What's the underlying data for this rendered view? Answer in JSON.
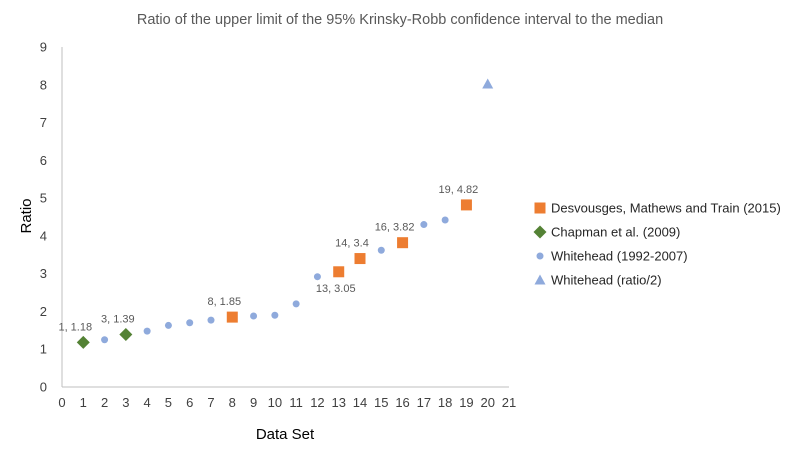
{
  "chart_data": {
    "type": "scatter",
    "title": "Ratio of the upper limit of the 95% Krinsky-Robb confidence interval to the median",
    "xlabel": "Data Set",
    "ylabel": "Ratio",
    "xlim": [
      0,
      21
    ],
    "ylim": [
      0,
      9
    ],
    "x_ticks": [
      0,
      1,
      2,
      3,
      4,
      5,
      6,
      7,
      8,
      9,
      10,
      11,
      12,
      13,
      14,
      15,
      16,
      17,
      18,
      19,
      20,
      21
    ],
    "y_ticks": [
      0,
      1,
      2,
      3,
      4,
      5,
      6,
      7,
      8,
      9
    ],
    "grid": false,
    "legend_position": "right",
    "series": [
      {
        "name": "Desvousges, Mathews and Train (2015)",
        "marker": "square",
        "color": "#ED7D31",
        "points": [
          {
            "x": 8,
            "y": 1.85,
            "label": "8, 1.85"
          },
          {
            "x": 13,
            "y": 3.05,
            "label": "13, 3.05"
          },
          {
            "x": 14,
            "y": 3.4,
            "label": "14, 3.4"
          },
          {
            "x": 16,
            "y": 3.82,
            "label": "16, 3.82"
          },
          {
            "x": 19,
            "y": 4.82,
            "label": "19, 4.82"
          }
        ]
      },
      {
        "name": "Chapman et al. (2009)",
        "marker": "diamond",
        "color": "#548235",
        "points": [
          {
            "x": 1,
            "y": 1.18,
            "label": "1, 1.18"
          },
          {
            "x": 3,
            "y": 1.39,
            "label": "3, 1.39"
          }
        ]
      },
      {
        "name": "Whitehead (1992-2007)",
        "marker": "circle",
        "color": "#8FAADC",
        "points": [
          {
            "x": 2,
            "y": 1.25
          },
          {
            "x": 4,
            "y": 1.48
          },
          {
            "x": 5,
            "y": 1.63
          },
          {
            "x": 6,
            "y": 1.7
          },
          {
            "x": 7,
            "y": 1.77
          },
          {
            "x": 9,
            "y": 1.88
          },
          {
            "x": 10,
            "y": 1.9
          },
          {
            "x": 11,
            "y": 2.2
          },
          {
            "x": 12,
            "y": 2.92
          },
          {
            "x": 15,
            "y": 3.62
          },
          {
            "x": 17,
            "y": 4.3
          },
          {
            "x": 18,
            "y": 4.42
          }
        ]
      },
      {
        "name": "Whitehead (ratio/2)",
        "marker": "triangle",
        "color": "#8FAADC",
        "points": [
          {
            "x": 20,
            "y": 8.02
          }
        ]
      }
    ]
  }
}
